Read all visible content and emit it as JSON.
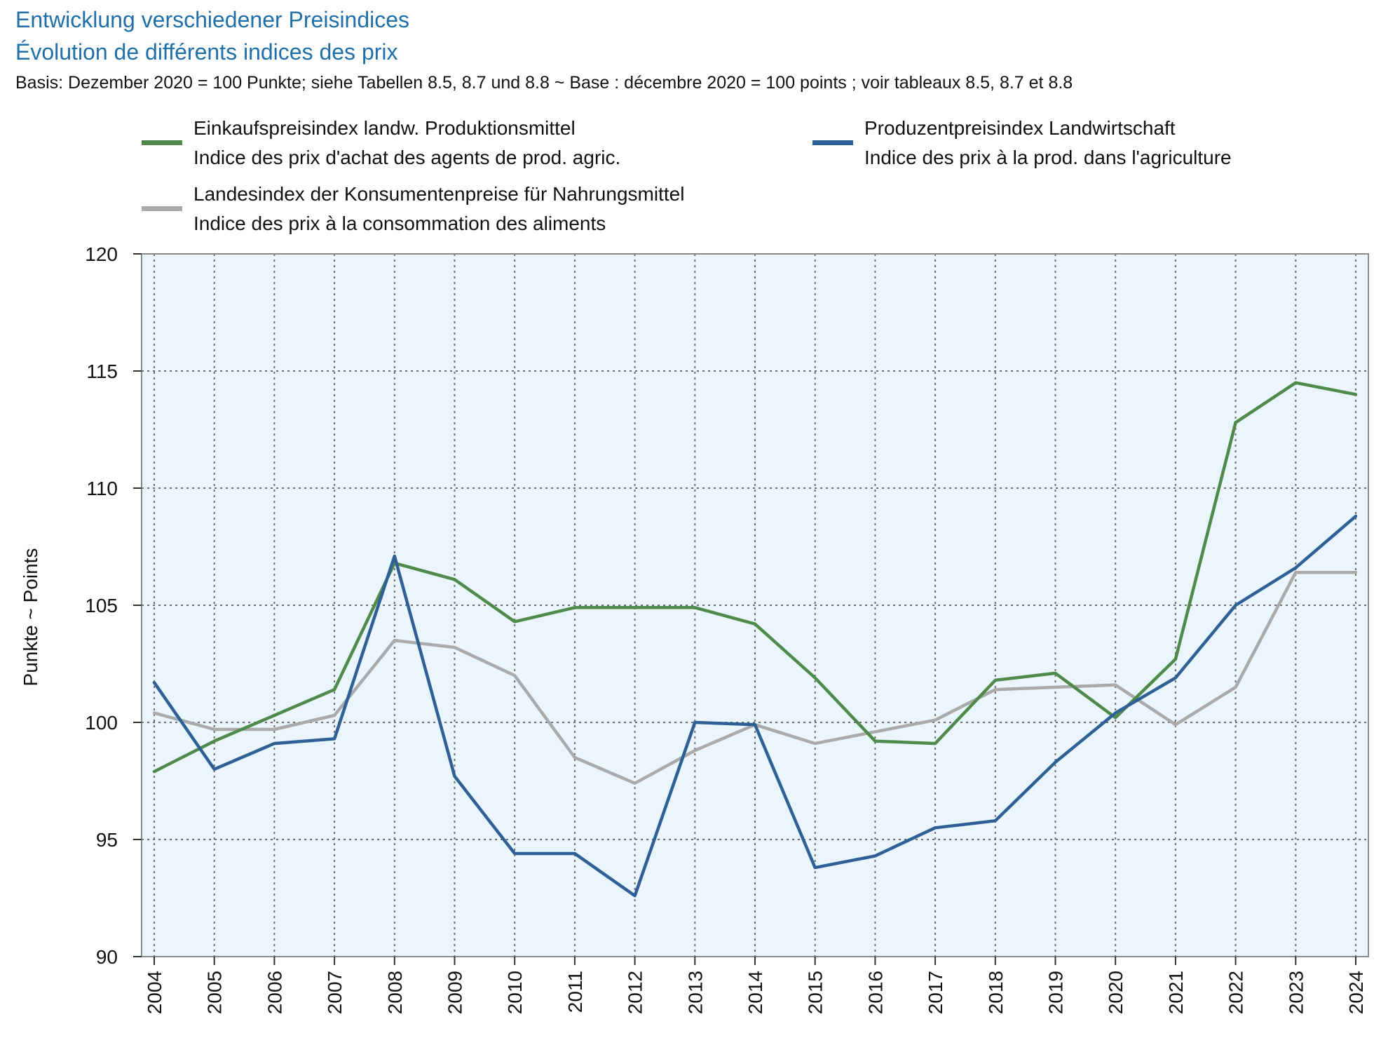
{
  "header": {
    "title_de": "Entwicklung verschiedener Preisindices",
    "title_fr": "Évolution de différents indices des prix",
    "subtitle": "Basis: Dezember 2020 = 100 Punkte; siehe Tabellen 8.5, 8.7 und 8.8   ~   Base : décembre 2020 = 100 points ; voir tableaux 8.5, 8.7 et 8.8"
  },
  "legend": [
    {
      "label_de": "Einkaufspreisindex landw. Produktionsmittel",
      "label_fr": "Indice des prix d'achat des agents de prod. agric.",
      "color": "#4f8a4a"
    },
    {
      "label_de": "Produzentpreisindex Landwirtschaft",
      "label_fr": "Indice des prix à la prod. dans l'agriculture",
      "color": "#2e6096"
    },
    {
      "label_de": "Landesindex der Konsumentenpreise für Nahrungsmittel",
      "label_fr": "Indice des prix à la consommation des aliments",
      "color": "#aaaaaa"
    }
  ],
  "chart_data": {
    "type": "line",
    "title": "Entwicklung verschiedener Preisindices / Évolution de différents indices des prix",
    "ylabel": "Punkte   ~   Points",
    "xlabel": "",
    "x": [
      2004,
      2005,
      2006,
      2007,
      2008,
      2009,
      2010,
      2011,
      2012,
      2013,
      2014,
      2015,
      2016,
      2017,
      2018,
      2019,
      2020,
      2021,
      2022,
      2023,
      2024
    ],
    "ylim": [
      90,
      120
    ],
    "yticks": [
      90,
      95,
      100,
      105,
      110,
      115,
      120
    ],
    "grid": true,
    "legend_position": "top",
    "series": [
      {
        "name": "Einkaufspreisindex landw. Produktionsmittel",
        "color": "#4f8a4a",
        "values": [
          97.9,
          99.2,
          100.3,
          101.4,
          106.8,
          106.1,
          104.3,
          104.9,
          104.9,
          104.9,
          104.2,
          101.9,
          99.2,
          99.1,
          101.8,
          102.1,
          100.2,
          102.7,
          112.8,
          114.5,
          114.0
        ]
      },
      {
        "name": "Produzentpreisindex Landwirtschaft",
        "color": "#2e6096",
        "values": [
          101.7,
          98.0,
          99.1,
          99.3,
          107.1,
          97.7,
          94.4,
          94.4,
          92.6,
          100.0,
          99.9,
          93.8,
          94.3,
          95.5,
          95.8,
          98.3,
          100.4,
          101.9,
          105.0,
          106.6,
          108.8
        ]
      },
      {
        "name": "Landesindex der Konsumentenpreise für Nahrungsmittel",
        "color": "#aaaaaa",
        "values": [
          100.4,
          99.7,
          99.7,
          100.3,
          103.5,
          103.2,
          102.0,
          98.5,
          97.4,
          98.8,
          99.9,
          99.1,
          99.6,
          100.1,
          101.4,
          101.5,
          101.6,
          99.9,
          101.5,
          106.4,
          106.4
        ]
      }
    ]
  }
}
